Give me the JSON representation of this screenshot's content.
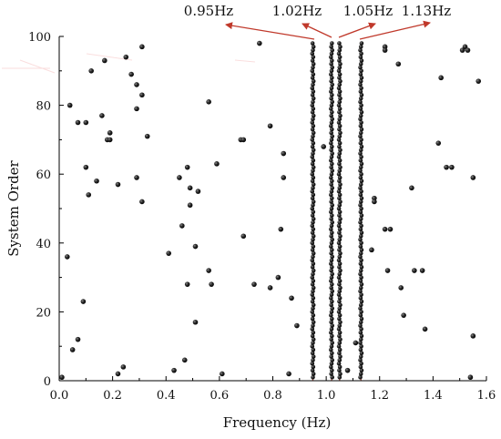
{
  "chart_data": {
    "type": "scatter",
    "title": "",
    "xlabel": "Frequency (Hz)",
    "ylabel": "System Order",
    "xlim": [
      0,
      1.6
    ],
    "ylim": [
      0,
      100
    ],
    "xticks": [
      0,
      0.2,
      0.4,
      0.6,
      0.8,
      1.0,
      1.2,
      1.4,
      1.6
    ],
    "xtick_labels": [
      "0.0",
      "0.2",
      "0.4",
      "0.6",
      "0.8",
      "1.0",
      "1.2",
      "1.4",
      "1.6"
    ],
    "yticks": [
      0,
      20,
      40,
      60,
      80,
      100
    ],
    "ytick_labels": [
      "0",
      "20",
      "40",
      "60",
      "80",
      "100"
    ],
    "grid": false,
    "colors": {
      "points": "#1a1a1a",
      "stable_marker": "#b85a4a",
      "annotation": "#c0392b"
    },
    "stable_lines": [
      {
        "frequency": 0.95,
        "label": "0.95Hz"
      },
      {
        "frequency": 1.02,
        "label": "1.02Hz"
      },
      {
        "frequency": 1.05,
        "label": "1.05Hz"
      },
      {
        "frequency": 1.13,
        "label": "1.13Hz"
      }
    ],
    "points": [
      [
        0.01,
        1
      ],
      [
        0.03,
        36
      ],
      [
        0.04,
        80
      ],
      [
        0.05,
        9
      ],
      [
        0.07,
        12
      ],
      [
        0.07,
        75
      ],
      [
        0.09,
        23
      ],
      [
        0.1,
        75
      ],
      [
        0.1,
        62
      ],
      [
        0.11,
        54
      ],
      [
        0.12,
        90
      ],
      [
        0.14,
        58
      ],
      [
        0.16,
        77
      ],
      [
        0.17,
        93
      ],
      [
        0.18,
        70
      ],
      [
        0.19,
        72
      ],
      [
        0.19,
        70
      ],
      [
        0.22,
        2
      ],
      [
        0.22,
        57
      ],
      [
        0.24,
        4
      ],
      [
        0.25,
        94
      ],
      [
        0.27,
        89
      ],
      [
        0.29,
        59
      ],
      [
        0.29,
        86
      ],
      [
        0.29,
        79
      ],
      [
        0.31,
        97
      ],
      [
        0.31,
        52
      ],
      [
        0.31,
        83
      ],
      [
        0.33,
        71
      ],
      [
        0.41,
        37
      ],
      [
        0.43,
        3
      ],
      [
        0.45,
        59
      ],
      [
        0.46,
        45
      ],
      [
        0.47,
        6
      ],
      [
        0.48,
        62
      ],
      [
        0.48,
        28
      ],
      [
        0.49,
        56
      ],
      [
        0.49,
        51
      ],
      [
        0.51,
        17
      ],
      [
        0.51,
        39
      ],
      [
        0.52,
        55
      ],
      [
        0.56,
        81
      ],
      [
        0.56,
        32
      ],
      [
        0.57,
        28
      ],
      [
        0.59,
        63
      ],
      [
        0.61,
        2
      ],
      [
        0.68,
        70
      ],
      [
        0.69,
        70
      ],
      [
        0.69,
        42
      ],
      [
        0.73,
        28
      ],
      [
        0.75,
        98
      ],
      [
        0.79,
        74
      ],
      [
        0.79,
        27
      ],
      [
        0.82,
        30
      ],
      [
        0.83,
        44
      ],
      [
        0.84,
        59
      ],
      [
        0.84,
        66
      ],
      [
        0.86,
        2
      ],
      [
        0.87,
        24
      ],
      [
        0.89,
        16
      ],
      [
        0.99,
        68
      ],
      [
        1.08,
        3
      ],
      [
        1.11,
        11
      ],
      [
        1.17,
        38
      ],
      [
        1.18,
        53
      ],
      [
        1.18,
        52
      ],
      [
        1.22,
        97
      ],
      [
        1.22,
        96
      ],
      [
        1.22,
        44
      ],
      [
        1.23,
        32
      ],
      [
        1.24,
        44
      ],
      [
        1.27,
        92
      ],
      [
        1.28,
        27
      ],
      [
        1.29,
        19
      ],
      [
        1.32,
        56
      ],
      [
        1.33,
        32
      ],
      [
        1.36,
        32
      ],
      [
        1.37,
        15
      ],
      [
        1.42,
        69
      ],
      [
        1.43,
        88
      ],
      [
        1.45,
        62
      ],
      [
        1.47,
        62
      ],
      [
        1.51,
        96
      ],
      [
        1.52,
        97
      ],
      [
        1.53,
        96
      ],
      [
        1.54,
        1
      ],
      [
        1.55,
        59
      ],
      [
        1.55,
        13
      ],
      [
        1.57,
        87
      ]
    ]
  }
}
